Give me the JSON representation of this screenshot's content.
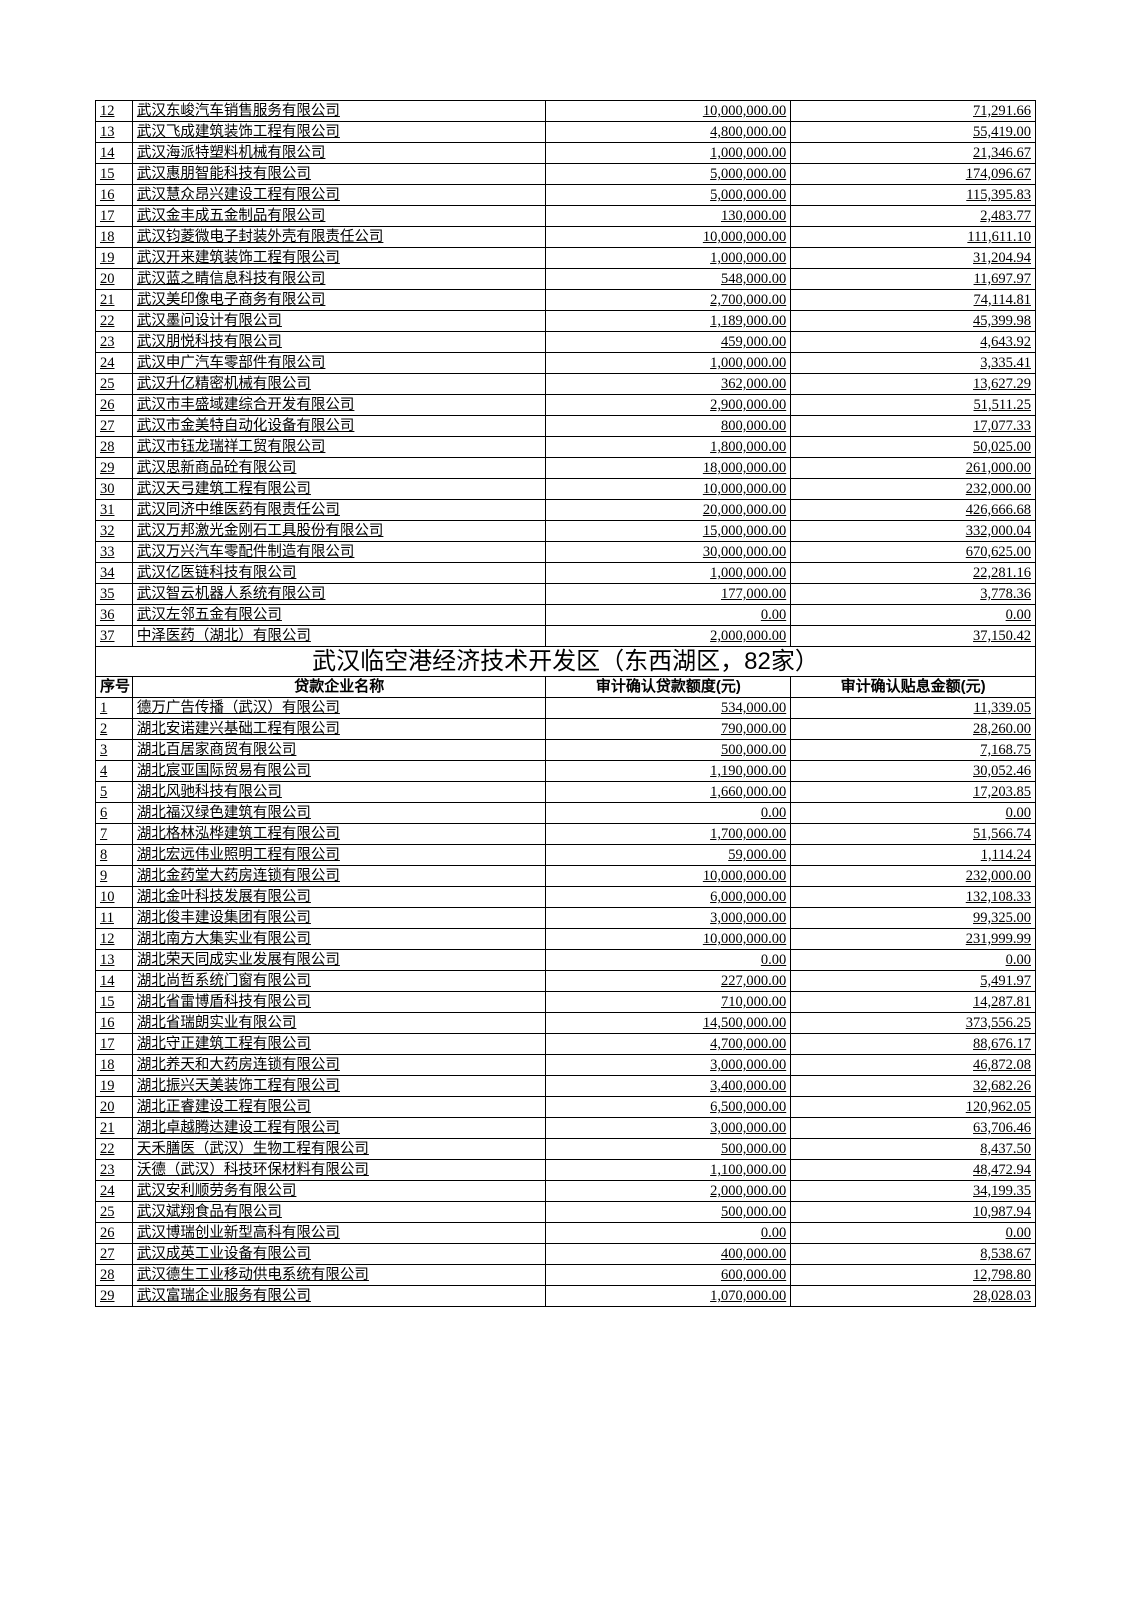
{
  "section1": {
    "rows": [
      {
        "n": "12",
        "name": "武汉东峻汽车销售服务有限公司",
        "a": "10,000,000.00",
        "b": "71,291.66"
      },
      {
        "n": "13",
        "name": "武汉飞成建筑装饰工程有限公司",
        "a": "4,800,000.00",
        "b": "55,419.00"
      },
      {
        "n": "14",
        "name": "武汉海派特塑料机械有限公司",
        "a": "1,000,000.00",
        "b": "21,346.67"
      },
      {
        "n": "15",
        "name": "武汉惠朋智能科技有限公司",
        "a": "5,000,000.00",
        "b": "174,096.67"
      },
      {
        "n": "16",
        "name": "武汉慧众昂兴建设工程有限公司",
        "a": "5,000,000.00",
        "b": "115,395.83"
      },
      {
        "n": "17",
        "name": "武汉金丰成五金制品有限公司",
        "a": "130,000.00",
        "b": "2,483.77"
      },
      {
        "n": "18",
        "name": "武汉钧菱微电子封装外壳有限责任公司",
        "a": "10,000,000.00",
        "b": "111,611.10"
      },
      {
        "n": "19",
        "name": "武汉开来建筑装饰工程有限公司",
        "a": "1,000,000.00",
        "b": "31,204.94"
      },
      {
        "n": "20",
        "name": "武汉蓝之睛信息科技有限公司",
        "a": "548,000.00",
        "b": "11,697.97"
      },
      {
        "n": "21",
        "name": "武汉美印像电子商务有限公司",
        "a": "2,700,000.00",
        "b": "74,114.81"
      },
      {
        "n": "22",
        "name": "武汉墨问设计有限公司",
        "a": "1,189,000.00",
        "b": "45,399.98"
      },
      {
        "n": "23",
        "name": "武汉朋悦科技有限公司",
        "a": "459,000.00",
        "b": "4,643.92"
      },
      {
        "n": "24",
        "name": "武汉申广汽车零部件有限公司",
        "a": "1,000,000.00",
        "b": "3,335.41"
      },
      {
        "n": "25",
        "name": "武汉升亿精密机械有限公司",
        "a": "362,000.00",
        "b": "13,627.29"
      },
      {
        "n": "26",
        "name": "武汉市丰盛域建综合开发有限公司",
        "a": "2,900,000.00",
        "b": "51,511.25"
      },
      {
        "n": "27",
        "name": "武汉市金美特自动化设备有限公司",
        "a": "800,000.00",
        "b": "17,077.33"
      },
      {
        "n": "28",
        "name": "武汉市钰龙瑞祥工贸有限公司",
        "a": "1,800,000.00",
        "b": "50,025.00"
      },
      {
        "n": "29",
        "name": "武汉思新商品砼有限公司",
        "a": "18,000,000.00",
        "b": "261,000.00"
      },
      {
        "n": "30",
        "name": "武汉天弓建筑工程有限公司",
        "a": "10,000,000.00",
        "b": "232,000.00"
      },
      {
        "n": "31",
        "name": "武汉同济中维医药有限责任公司",
        "a": "20,000,000.00",
        "b": "426,666.68"
      },
      {
        "n": "32",
        "name": "武汉万邦激光金刚石工具股份有限公司",
        "a": "15,000,000.00",
        "b": "332,000.04"
      },
      {
        "n": "33",
        "name": "武汉万兴汽车零配件制造有限公司",
        "a": "30,000,000.00",
        "b": "670,625.00"
      },
      {
        "n": "34",
        "name": "武汉亿医链科技有限公司",
        "a": "1,000,000.00",
        "b": "22,281.16"
      },
      {
        "n": "35",
        "name": "武汉智云机器人系统有限公司",
        "a": "177,000.00",
        "b": "3,778.36"
      },
      {
        "n": "36",
        "name": "武汉左邻五金有限公司",
        "a": "0.00",
        "b": "0.00"
      },
      {
        "n": "37",
        "name": "中泽医药（湖北）有限公司",
        "a": "2,000,000.00",
        "b": "37,150.42"
      }
    ]
  },
  "section2": {
    "title": "武汉临空港经济技术开发区（东西湖区，82家）",
    "headers": {
      "n": "序号",
      "name": "贷款企业名称",
      "a": "审计确认贷款额度(元)",
      "b": "审计确认贴息金额(元)"
    },
    "rows": [
      {
        "n": "1",
        "name": "德万广告传播（武汉）有限公司",
        "a": "534,000.00",
        "b": "11,339.05"
      },
      {
        "n": "2",
        "name": "湖北安诺建兴基础工程有限公司",
        "a": "790,000.00",
        "b": "28,260.00"
      },
      {
        "n": "3",
        "name": "湖北百居家商贸有限公司",
        "a": "500,000.00",
        "b": "7,168.75"
      },
      {
        "n": "4",
        "name": "湖北宸亚国际贸易有限公司",
        "a": "1,190,000.00",
        "b": "30,052.46"
      },
      {
        "n": "5",
        "name": "湖北风驰科技有限公司",
        "a": "1,660,000.00",
        "b": "17,203.85"
      },
      {
        "n": "6",
        "name": "湖北福汉绿色建筑有限公司",
        "a": "0.00",
        "b": "0.00"
      },
      {
        "n": "7",
        "name": "湖北格林泓桦建筑工程有限公司",
        "a": "1,700,000.00",
        "b": "51,566.74"
      },
      {
        "n": "8",
        "name": "湖北宏远伟业照明工程有限公司",
        "a": "59,000.00",
        "b": "1,114.24"
      },
      {
        "n": "9",
        "name": "湖北金药堂大药房连锁有限公司",
        "a": "10,000,000.00",
        "b": "232,000.00"
      },
      {
        "n": "10",
        "name": "湖北金叶科技发展有限公司",
        "a": "6,000,000.00",
        "b": "132,108.33"
      },
      {
        "n": "11",
        "name": "湖北俊丰建设集团有限公司",
        "a": "3,000,000.00",
        "b": "99,325.00"
      },
      {
        "n": "12",
        "name": "湖北南方大集实业有限公司",
        "a": "10,000,000.00",
        "b": "231,999.99"
      },
      {
        "n": "13",
        "name": "湖北荣天同成实业发展有限公司",
        "a": "0.00",
        "b": "0.00"
      },
      {
        "n": "14",
        "name": "湖北尚哲系统门窗有限公司",
        "a": "227,000.00",
        "b": "5,491.97"
      },
      {
        "n": "15",
        "name": "湖北省雷博盾科技有限公司",
        "a": "710,000.00",
        "b": "14,287.81"
      },
      {
        "n": "16",
        "name": "湖北省瑞朗实业有限公司",
        "a": "14,500,000.00",
        "b": "373,556.25"
      },
      {
        "n": "17",
        "name": "湖北守正建筑工程有限公司",
        "a": "4,700,000.00",
        "b": "88,676.17"
      },
      {
        "n": "18",
        "name": "湖北养天和大药房连锁有限公司",
        "a": "3,000,000.00",
        "b": "46,872.08"
      },
      {
        "n": "19",
        "name": "湖北振兴天美装饰工程有限公司",
        "a": "3,400,000.00",
        "b": "32,682.26"
      },
      {
        "n": "20",
        "name": "湖北正睿建设工程有限公司",
        "a": "6,500,000.00",
        "b": "120,962.05"
      },
      {
        "n": "21",
        "name": "湖北卓越腾达建设工程有限公司",
        "a": "3,000,000.00",
        "b": "63,706.46"
      },
      {
        "n": "22",
        "name": "天禾膳医（武汉）生物工程有限公司",
        "a": "500,000.00",
        "b": "8,437.50"
      },
      {
        "n": "23",
        "name": "沃德（武汉）科技环保材料有限公司",
        "a": "1,100,000.00",
        "b": "48,472.94"
      },
      {
        "n": "24",
        "name": "武汉安利顺劳务有限公司",
        "a": "2,000,000.00",
        "b": "34,199.35"
      },
      {
        "n": "25",
        "name": "武汉斌翔食品有限公司",
        "a": "500,000.00",
        "b": "10,987.94"
      },
      {
        "n": "26",
        "name": "武汉博瑞创业新型高科有限公司",
        "a": "0.00",
        "b": "0.00"
      },
      {
        "n": "27",
        "name": "武汉成英工业设备有限公司",
        "a": "400,000.00",
        "b": "8,538.67"
      },
      {
        "n": "28",
        "name": "武汉德生工业移动供电系统有限公司",
        "a": "600,000.00",
        "b": "12,798.80"
      },
      {
        "n": "29",
        "name": "武汉富瑞企业服务有限公司",
        "a": "1,070,000.00",
        "b": "28,028.03"
      }
    ]
  }
}
